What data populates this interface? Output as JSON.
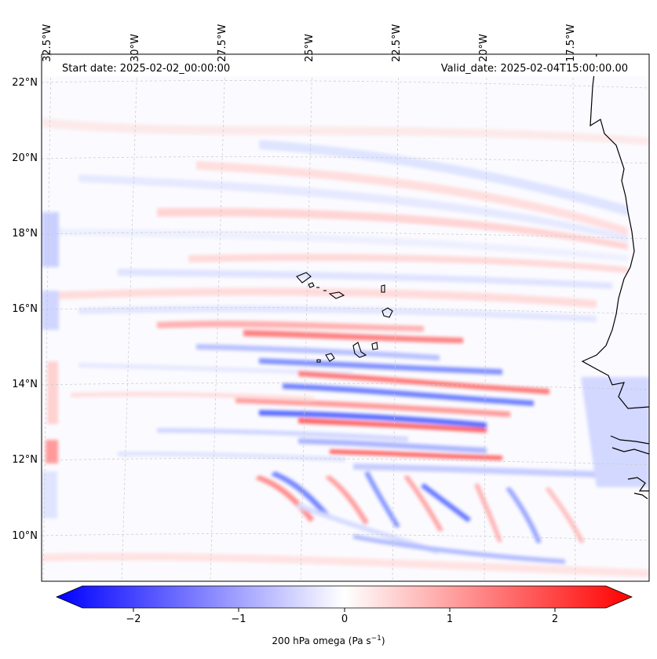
{
  "header": {
    "start_date": "Start date: 2025-02-02_00:00:00",
    "valid_date": "Valid_date: 2025-02-04T15:00:00.00"
  },
  "axes": {
    "lon_labels": [
      "32.5°W",
      "30°W",
      "27.5°W",
      "25°W",
      "22.5°W",
      "20°W",
      "17.5°W"
    ],
    "lat_labels": [
      "22°N",
      "20°N",
      "18°N",
      "16°N",
      "14°N",
      "12°N",
      "10°N"
    ]
  },
  "colorbar": {
    "ticks": [
      "−2",
      "−1",
      "0",
      "1",
      "2"
    ],
    "label_main": "200 hPa omega (Pa s",
    "label_sup": "−1",
    "label_end": ")",
    "min": -2.5,
    "max": 2.5,
    "colors": {
      "negative": "#0000ff",
      "zero": "#ffffff",
      "positive": "#ff0000"
    }
  },
  "map": {
    "variable": "omega",
    "level_hpa": 200,
    "units": "Pa s-1",
    "features": [
      "Cape Verde islands",
      "West African coastline"
    ]
  }
}
